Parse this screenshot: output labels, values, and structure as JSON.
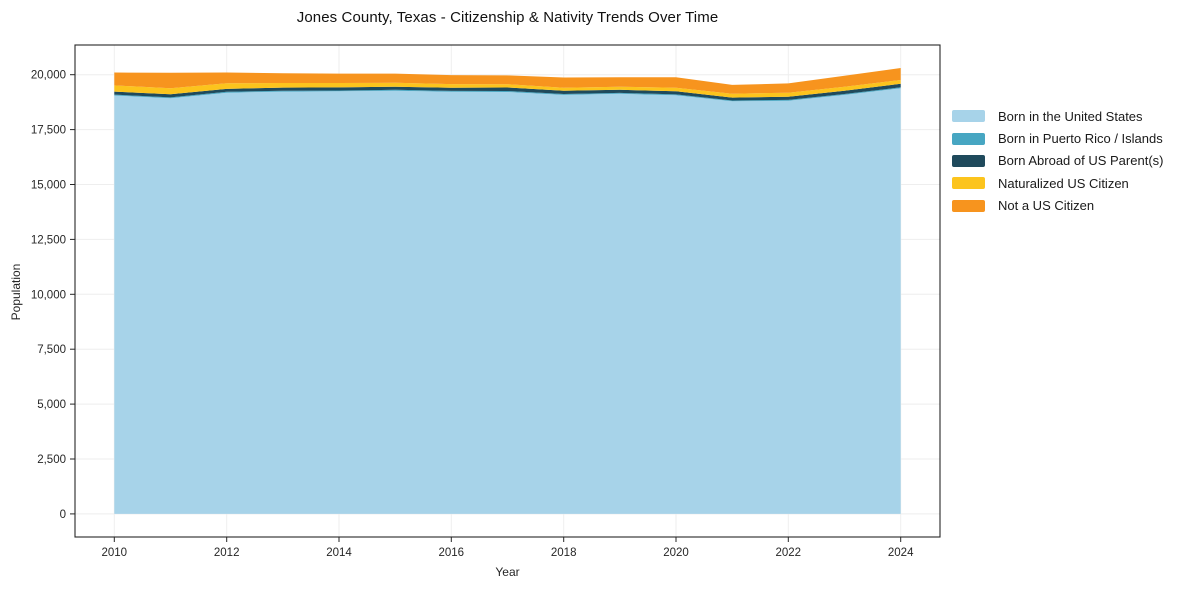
{
  "title": "Jones County, Texas - Citizenship & Nativity Trends Over Time",
  "chart_data": {
    "type": "area",
    "stacked": true,
    "title": "Jones County, Texas - Citizenship & Nativity Trends Over Time",
    "xlabel": "Year",
    "ylabel": "Population",
    "grid": true,
    "legend_position": "right-outside",
    "x": [
      2010,
      2011,
      2012,
      2013,
      2014,
      2015,
      2016,
      2017,
      2018,
      2019,
      2020,
      2021,
      2022,
      2023,
      2024
    ],
    "series": [
      {
        "name": "Born in the United States",
        "color": "#a7d3e9",
        "values": [
          19050,
          18930,
          19180,
          19230,
          19240,
          19270,
          19220,
          19210,
          19080,
          19130,
          19060,
          18790,
          18810,
          19080,
          19380
        ]
      },
      {
        "name": "Born in Puerto Rico / Islands",
        "color": "#47a6c2",
        "values": [
          40,
          35,
          40,
          40,
          40,
          40,
          40,
          45,
          40,
          40,
          40,
          35,
          40,
          40,
          45
        ]
      },
      {
        "name": "Born Abroad of US Parent(s)",
        "color": "#1f4a5c",
        "values": [
          140,
          140,
          130,
          140,
          140,
          140,
          140,
          160,
          150,
          140,
          140,
          130,
          140,
          150,
          160
        ]
      },
      {
        "name": "Naturalized US Citizen",
        "color": "#fcc41d",
        "values": [
          280,
          280,
          260,
          210,
          200,
          180,
          170,
          150,
          130,
          140,
          160,
          180,
          190,
          180,
          170
        ]
      },
      {
        "name": "Not a US Citizen",
        "color": "#f7941e",
        "values": [
          590,
          700,
          490,
          440,
          430,
          420,
          410,
          400,
          470,
          430,
          480,
          400,
          420,
          500,
          550
        ]
      }
    ],
    "xlim": [
      2009.3,
      2024.7
    ],
    "ylim": [
      -1050,
      21350
    ],
    "xticks": [
      2010,
      2012,
      2014,
      2016,
      2018,
      2020,
      2022,
      2024
    ],
    "xtick_labels": [
      "2010",
      "2012",
      "2014",
      "2016",
      "2018",
      "2020",
      "2022",
      "2024"
    ],
    "yticks": [
      0,
      2500,
      5000,
      7500,
      10000,
      12500,
      15000,
      17500,
      20000
    ],
    "ytick_labels": [
      "0",
      "2,500",
      "5,000",
      "7,500",
      "10,000",
      "12,500",
      "15,000",
      "17,500",
      "20,000"
    ]
  }
}
